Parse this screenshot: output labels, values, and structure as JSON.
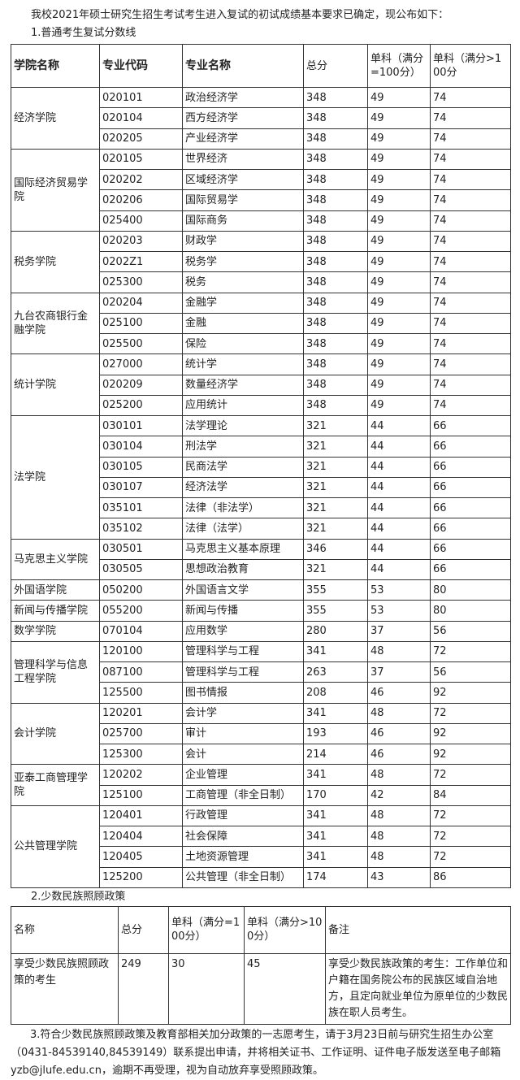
{
  "intro": "我校2021年硕士研究生招生考试考生进入复试的初试成绩基本要求已确定，现公布如下：",
  "section1_title": "1.普通考生复试分数线",
  "table1": {
    "headers": [
      "学院名称",
      "专业代码",
      "专业名称",
      "总分",
      "单科（满分=100分）",
      "单科（满分>100分"
    ],
    "groups": [
      {
        "college": "经济学院",
        "rows": [
          [
            "020101",
            "政治经济学",
            "348",
            "49",
            "74"
          ],
          [
            "020104",
            "西方经济学",
            "348",
            "49",
            "74"
          ],
          [
            "020205",
            "产业经济学",
            "348",
            "49",
            "74"
          ]
        ]
      },
      {
        "college": "国际经济贸易学院",
        "rows": [
          [
            "020105",
            "世界经济",
            "348",
            "49",
            "74"
          ],
          [
            "020202",
            "区域经济学",
            "348",
            "49",
            "74"
          ],
          [
            "020206",
            "国际贸易学",
            "348",
            "49",
            "74"
          ],
          [
            "025400",
            "国际商务",
            "348",
            "49",
            "74"
          ]
        ]
      },
      {
        "college": "税务学院",
        "rows": [
          [
            "020203",
            "财政学",
            "348",
            "49",
            "74"
          ],
          [
            "0202Z1",
            "税务学",
            "348",
            "49",
            "74"
          ],
          [
            "025300",
            "税务",
            "348",
            "49",
            "74"
          ]
        ]
      },
      {
        "college": "九台农商银行金融学院",
        "rows": [
          [
            "020204",
            "金融学",
            "348",
            "49",
            "74"
          ],
          [
            "025100",
            "金融",
            "348",
            "49",
            "74"
          ],
          [
            "025500",
            "保险",
            "348",
            "49",
            "74"
          ]
        ]
      },
      {
        "college": "统计学院",
        "rows": [
          [
            "027000",
            "统计学",
            "348",
            "49",
            "74"
          ],
          [
            "020209",
            "数量经济学",
            "348",
            "49",
            "74"
          ],
          [
            "025200",
            "应用统计",
            "348",
            "49",
            "74"
          ]
        ]
      },
      {
        "college": "法学院",
        "rows": [
          [
            "030101",
            "法学理论",
            "321",
            "44",
            "66"
          ],
          [
            "030104",
            "刑法学",
            "321",
            "44",
            "66"
          ],
          [
            "030105",
            "民商法学",
            "321",
            "44",
            "66"
          ],
          [
            "030107",
            "经济法学",
            "321",
            "44",
            "66"
          ],
          [
            "035101",
            "法律（非法学）",
            "321",
            "44",
            "66"
          ],
          [
            "035102",
            "法律（法学）",
            "321",
            "44",
            "66"
          ]
        ]
      },
      {
        "college": "马克思主义学院",
        "rows": [
          [
            "030501",
            "马克思主义基本原理",
            "346",
            "44",
            "66"
          ],
          [
            "030505",
            "思想政治教育",
            "321",
            "44",
            "66"
          ]
        ]
      },
      {
        "college": "外国语学院",
        "rows": [
          [
            "050200",
            "外国语言文学",
            "355",
            "53",
            "80"
          ]
        ]
      },
      {
        "college": "新闻与传播学院",
        "rows": [
          [
            "055200",
            "新闻与传播",
            "355",
            "53",
            "80"
          ]
        ]
      },
      {
        "college": "数学学院",
        "rows": [
          [
            "070104",
            "应用数学",
            "280",
            "37",
            "56"
          ]
        ]
      },
      {
        "college": "管理科学与信息工程学院",
        "rows": [
          [
            "120100",
            "管理科学与工程",
            "341",
            "48",
            "72"
          ],
          [
            "087100",
            "管理科学与工程",
            "263",
            "37",
            "56"
          ],
          [
            "125500",
            "图书情报",
            "208",
            "46",
            "92"
          ]
        ]
      },
      {
        "college": "会计学院",
        "rows": [
          [
            "120201",
            "会计学",
            "341",
            "48",
            "72"
          ],
          [
            "025700",
            "审计",
            "193",
            "46",
            "92"
          ],
          [
            "125300",
            "会计",
            "214",
            "46",
            "92"
          ]
        ]
      },
      {
        "college": "亚泰工商管理学院",
        "rows": [
          [
            "120202",
            "企业管理",
            "341",
            "48",
            "72"
          ],
          [
            "125100",
            "工商管理（非全日制）",
            "170",
            "42",
            "84"
          ]
        ]
      },
      {
        "college": "公共管理学院",
        "rows": [
          [
            "120401",
            "行政管理",
            "341",
            "48",
            "72"
          ],
          [
            "120404",
            "社会保障",
            "341",
            "48",
            "72"
          ],
          [
            "120405",
            "土地资源管理",
            "341",
            "48",
            "72"
          ],
          [
            "125200",
            "公共管理（非全日制）",
            "174",
            "43",
            "86"
          ]
        ]
      }
    ]
  },
  "section2_title": "2.少数民族照顾政策",
  "table2": {
    "headers": [
      "名称",
      "总分",
      "单科（满分=100分）",
      "单科（满分>100分）",
      "备注"
    ],
    "row": [
      "享受少数民族照顾政策的考生",
      "249",
      "30",
      "45",
      "享受少数民族政策的考生：工作单位和户籍在国务院公布的民族区域自治地方，且定向就业单位为原单位的少数民族在职人员考生。"
    ]
  },
  "section3_text": "3.符合少数民族照顾政策及教育部相关加分政策的一志愿考生，请于3月23日前与研究生招生办公室（0431-84539140,84539149）联系提出申请，并将相关证书、工作证明、证件电子版发送至电子邮箱yzb@jlufe.edu.cn，逾期不再受理，视为自动放弃享受照顾政策。"
}
